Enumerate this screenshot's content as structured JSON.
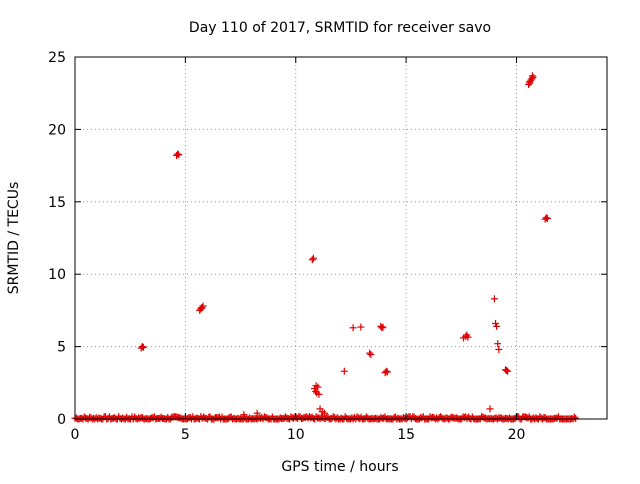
{
  "chart_data": {
    "type": "scatter",
    "title": "Day 110 of 2017, SRMTID for receiver savo",
    "xlabel": "GPS time / hours",
    "ylabel": "SRMTID / TECUs",
    "xlim": [
      0,
      24.1
    ],
    "ylim": [
      0,
      25
    ],
    "xticks": [
      0,
      5,
      10,
      15,
      20
    ],
    "yticks": [
      0,
      5,
      10,
      15,
      20,
      25
    ],
    "xtick_labels": [
      "0",
      "5",
      "10",
      "15",
      "20"
    ],
    "ytick_labels": [
      "0",
      "5",
      "10",
      "15",
      "20",
      "25"
    ],
    "grid": true,
    "marker": "+",
    "colors": {
      "points": "#e00000",
      "grid": "#999999",
      "frame": "#000000"
    },
    "baseline": {
      "x_start": 0.0,
      "x_end": 22.7,
      "y": 0.05,
      "spread": 0.12
    },
    "series": [
      {
        "values": [
          [
            3.0,
            4.9
          ],
          [
            3.05,
            5.0
          ],
          [
            3.1,
            4.95
          ],
          [
            4.6,
            18.2
          ],
          [
            4.65,
            18.3
          ],
          [
            4.7,
            18.25
          ],
          [
            5.65,
            7.5
          ],
          [
            5.7,
            7.6
          ],
          [
            5.75,
            7.7
          ],
          [
            5.8,
            7.8
          ],
          [
            5.72,
            7.65
          ],
          [
            7.65,
            0.3
          ],
          [
            8.25,
            0.4
          ],
          [
            10.75,
            11.0
          ],
          [
            10.8,
            11.1
          ],
          [
            10.85,
            2.1
          ],
          [
            10.9,
            1.9
          ],
          [
            10.95,
            1.8
          ],
          [
            11.0,
            2.2
          ],
          [
            11.05,
            1.7
          ],
          [
            10.92,
            2.3
          ],
          [
            11.1,
            0.7
          ],
          [
            11.2,
            0.5
          ],
          [
            11.3,
            0.4
          ],
          [
            12.2,
            3.3
          ],
          [
            12.6,
            6.3
          ],
          [
            12.95,
            6.35
          ],
          [
            13.35,
            4.55
          ],
          [
            13.4,
            4.45
          ],
          [
            13.85,
            6.4
          ],
          [
            13.9,
            6.3
          ],
          [
            13.95,
            6.35
          ],
          [
            14.05,
            3.2
          ],
          [
            14.1,
            3.3
          ],
          [
            14.15,
            3.25
          ],
          [
            17.6,
            5.6
          ],
          [
            17.7,
            5.7
          ],
          [
            17.75,
            5.8
          ],
          [
            17.8,
            5.65
          ],
          [
            18.8,
            0.7
          ],
          [
            19.0,
            8.3
          ],
          [
            19.05,
            6.6
          ],
          [
            19.1,
            6.4
          ],
          [
            19.15,
            5.2
          ],
          [
            19.2,
            4.8
          ],
          [
            19.5,
            3.4
          ],
          [
            19.55,
            3.35
          ],
          [
            19.6,
            3.3
          ],
          [
            20.55,
            23.1
          ],
          [
            20.6,
            23.3
          ],
          [
            20.65,
            23.4
          ],
          [
            20.7,
            23.5
          ],
          [
            20.75,
            23.6
          ],
          [
            20.6,
            23.2
          ],
          [
            20.72,
            23.7
          ],
          [
            21.3,
            13.8
          ],
          [
            21.35,
            13.9
          ],
          [
            21.4,
            13.85
          ]
        ]
      }
    ]
  }
}
